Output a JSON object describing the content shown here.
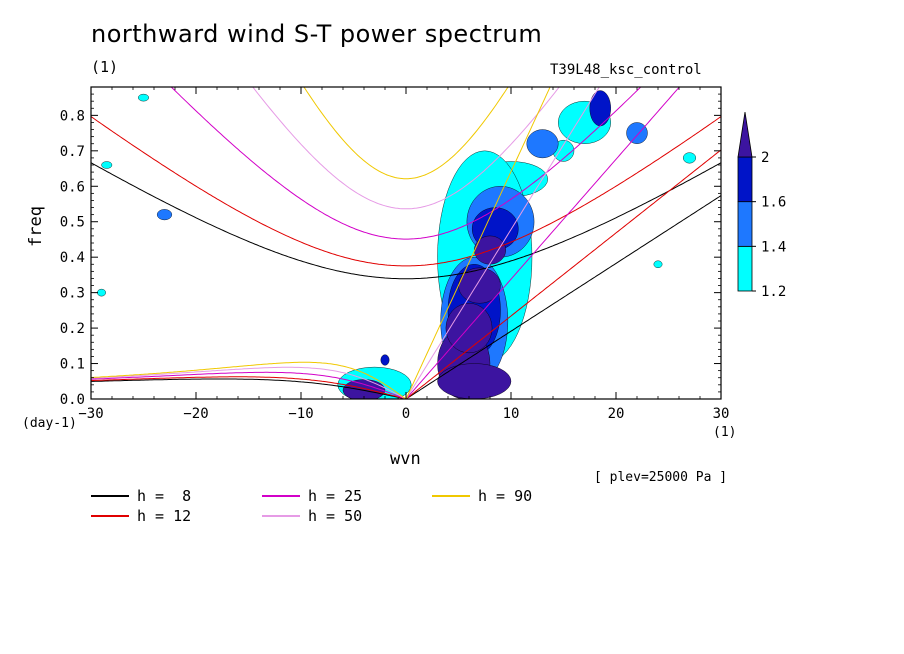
{
  "chart_data": {
    "type": "contour",
    "title": "northward wind S-T power spectrum",
    "units_label": "(1)",
    "run_id": "T39L48_ksc_control",
    "xlabel": "wvn",
    "ylabel": "freq",
    "x_unit_label": "(1)",
    "y_unit_label": "(day-1)",
    "xlim": [
      -30,
      30
    ],
    "ylim": [
      0,
      0.88
    ],
    "xticks": [
      -30,
      -20,
      -10,
      0,
      10,
      20,
      30
    ],
    "yticks": [
      0.0,
      0.1,
      0.2,
      0.3,
      0.4,
      0.5,
      0.6,
      0.7,
      0.8
    ],
    "ytick_labels": [
      "0.0",
      "0.1",
      "0.2",
      "0.3",
      "0.4",
      "0.5",
      "0.6",
      "0.7",
      "0.8"
    ],
    "annotation": "[ plev=25000 Pa ]",
    "colorbar": {
      "levels": [
        1.2,
        1.4,
        1.6,
        2
      ],
      "labels": [
        "1.2",
        "1.4",
        "1.6",
        "2"
      ],
      "colors": [
        "#00ffff",
        "#1e78ff",
        "#0014c8",
        "#3c14a0"
      ]
    },
    "dispersion_curves": [
      {
        "name": "h =  8",
        "h": 8,
        "color": "#000000"
      },
      {
        "name": "h = 12",
        "h": 12,
        "color": "#e00000"
      },
      {
        "name": "h = 25",
        "h": 25,
        "color": "#d200c8"
      },
      {
        "name": "h = 50",
        "h": 50,
        "color": "#e69be6"
      },
      {
        "name": "h = 90",
        "h": 90,
        "color": "#f0c800"
      }
    ],
    "blobs": [
      {
        "k": 5.5,
        "f": 0.1,
        "rk": 2.5,
        "rf": 0.1,
        "lvl": 3
      },
      {
        "k": 6.0,
        "f": 0.2,
        "rk": 2.2,
        "rf": 0.07,
        "lvl": 3
      },
      {
        "k": 7.0,
        "f": 0.32,
        "rk": 2.0,
        "rf": 0.05,
        "lvl": 3
      },
      {
        "k": 8.0,
        "f": 0.42,
        "rk": 1.5,
        "rf": 0.04,
        "lvl": 3
      },
      {
        "k": -4.0,
        "f": 0.025,
        "rk": 2.0,
        "rf": 0.03,
        "lvl": 3
      },
      {
        "k": 6.5,
        "f": 0.05,
        "rk": 3.5,
        "rf": 0.05,
        "lvl": 3
      },
      {
        "k": 6.5,
        "f": 0.25,
        "rk": 2.5,
        "rf": 0.13,
        "lvl": 2
      },
      {
        "k": 8.5,
        "f": 0.48,
        "rk": 2.2,
        "rf": 0.06,
        "lvl": 2
      },
      {
        "k": 6.5,
        "f": 0.22,
        "rk": 3.2,
        "rf": 0.18,
        "lvl": 1
      },
      {
        "k": 9.0,
        "f": 0.5,
        "rk": 3.2,
        "rf": 0.1,
        "lvl": 1
      },
      {
        "k": 10.0,
        "f": 0.62,
        "rk": 3.5,
        "rf": 0.05,
        "lvl": 0
      },
      {
        "k": 7.5,
        "f": 0.4,
        "rk": 4.5,
        "rf": 0.3,
        "lvl": 0
      },
      {
        "k": -3.0,
        "f": 0.04,
        "rk": 3.5,
        "rf": 0.05,
        "lvl": 0
      },
      {
        "k": 18.5,
        "f": 0.82,
        "rk": 1.0,
        "rf": 0.05,
        "lvl": 2
      },
      {
        "k": 17.0,
        "f": 0.78,
        "rk": 2.5,
        "rf": 0.06,
        "lvl": 0
      },
      {
        "k": 15.0,
        "f": 0.7,
        "rk": 1.0,
        "rf": 0.03,
        "lvl": 0
      },
      {
        "k": 13.0,
        "f": 0.72,
        "rk": 1.5,
        "rf": 0.04,
        "lvl": 1
      },
      {
        "k": 22.0,
        "f": 0.75,
        "rk": 1.0,
        "rf": 0.03,
        "lvl": 1
      },
      {
        "k": -23.0,
        "f": 0.52,
        "rk": 0.7,
        "rf": 0.015,
        "lvl": 1
      },
      {
        "k": -2.0,
        "f": 0.11,
        "rk": 0.4,
        "rf": 0.015,
        "lvl": 2
      },
      {
        "k": -29.0,
        "f": 0.3,
        "rk": 0.4,
        "rf": 0.01,
        "lvl": 0
      },
      {
        "k": -28.5,
        "f": 0.66,
        "rk": 0.5,
        "rf": 0.01,
        "lvl": 0
      },
      {
        "k": -25.0,
        "f": 0.85,
        "rk": 0.5,
        "rf": 0.01,
        "lvl": 0
      },
      {
        "k": 24.0,
        "f": 0.38,
        "rk": 0.4,
        "rf": 0.01,
        "lvl": 0
      },
      {
        "k": 27.0,
        "f": 0.68,
        "rk": 0.6,
        "rf": 0.015,
        "lvl": 0
      }
    ]
  },
  "legend": {
    "items": [
      "h =  8",
      "h = 12",
      "h = 25",
      "h = 50",
      "h = 90"
    ]
  }
}
